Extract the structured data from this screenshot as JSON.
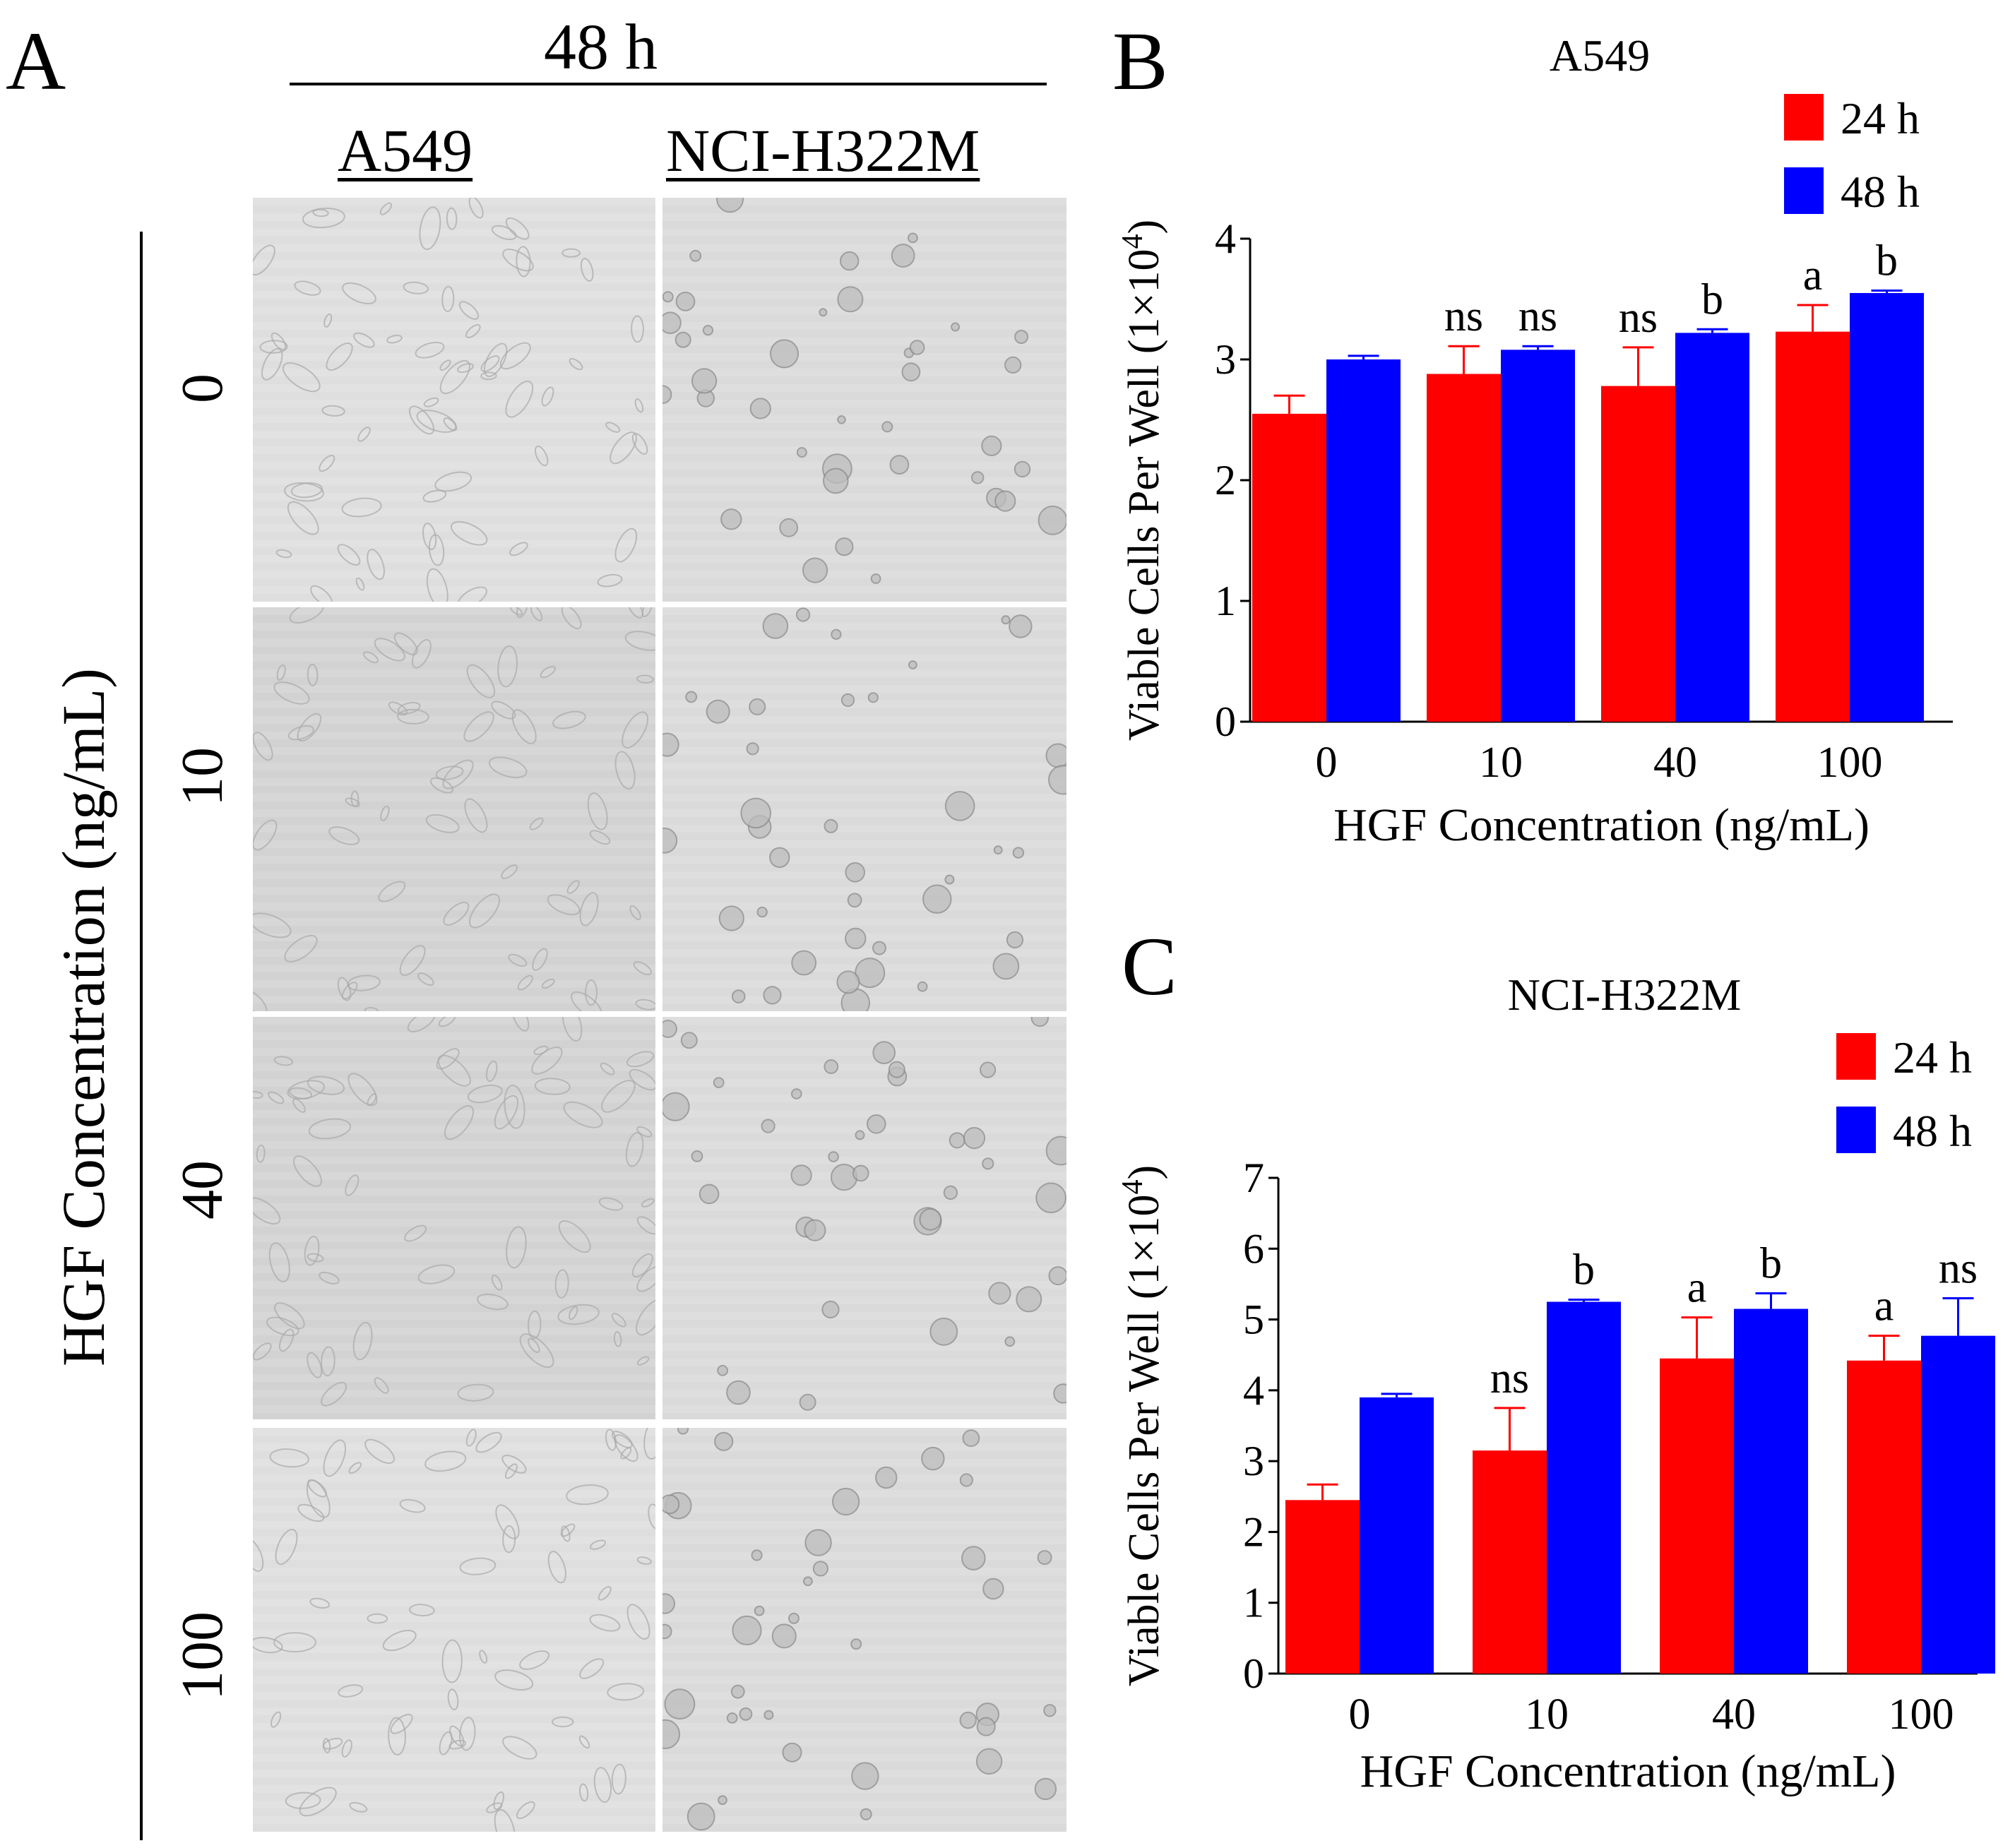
{
  "panel_a": {
    "letter": "A",
    "time_header": "48 h",
    "columns": [
      "A549",
      "NCI-H322M"
    ],
    "row_axis_label": "HGF Concentration (ng/mL)",
    "row_labels": [
      "0",
      "10",
      "40",
      "100"
    ]
  },
  "chart_data": [
    {
      "panel": "B",
      "type": "bar",
      "title": "A549",
      "xlabel": "HGF Concentration (ng/mL)",
      "ylabel": "Viable Cells Per Well (1×10⁴)",
      "categories": [
        "0",
        "10",
        "40",
        "100"
      ],
      "ylim": [
        0,
        4
      ],
      "yticks": [
        "0",
        "1",
        "2",
        "3",
        "4"
      ],
      "series": [
        {
          "name": "24 h",
          "color": "#ff0000",
          "values": [
            2.55,
            2.88,
            2.78,
            3.23
          ],
          "errors": [
            0.15,
            0.23,
            0.32,
            0.22
          ],
          "labels": [
            "",
            "ns",
            "ns",
            "a"
          ]
        },
        {
          "name": "48 h",
          "color": "#0000ff",
          "values": [
            3.0,
            3.08,
            3.22,
            3.55
          ],
          "errors": [
            0.03,
            0.03,
            0.03,
            0.02
          ],
          "labels": [
            "",
            "ns",
            "b",
            "b"
          ]
        }
      ]
    },
    {
      "panel": "C",
      "type": "bar",
      "title": "NCI-H322M",
      "xlabel": "HGF Concentration (ng/mL)",
      "ylabel": "Viable Cells Per Well (1×10⁴)",
      "categories": [
        "0",
        "10",
        "40",
        "100"
      ],
      "ylim": [
        0,
        7
      ],
      "yticks": [
        "0",
        "1",
        "2",
        "3",
        "4",
        "5",
        "6",
        "7"
      ],
      "series": [
        {
          "name": "24 h",
          "color": "#ff0000",
          "values": [
            2.45,
            3.15,
            4.45,
            4.42
          ],
          "errors": [
            0.22,
            0.6,
            0.58,
            0.35
          ],
          "labels": [
            "",
            "ns",
            "a",
            "a"
          ]
        },
        {
          "name": "48 h",
          "color": "#0000ff",
          "values": [
            3.9,
            5.25,
            5.15,
            4.77
          ],
          "errors": [
            0.05,
            0.03,
            0.22,
            0.53
          ],
          "labels": [
            "",
            "b",
            "b",
            "ns"
          ]
        }
      ]
    }
  ]
}
